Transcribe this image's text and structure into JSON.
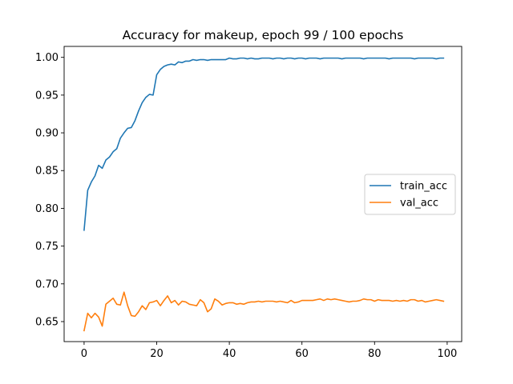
{
  "chart_data": {
    "type": "line",
    "title": "Accuracy for makeup, epoch 99 / 100 epochs",
    "xlabel": "",
    "ylabel": "",
    "xlim": [
      -5.5,
      104
    ],
    "ylim": [
      0.6235,
      1.0145
    ],
    "xticks": [
      0,
      20,
      40,
      60,
      80,
      100
    ],
    "yticks": [
      0.65,
      0.7,
      0.75,
      0.8,
      0.85,
      0.9,
      0.95,
      1.0
    ],
    "ytick_labels": [
      "0.65",
      "0.70",
      "0.75",
      "0.80",
      "0.85",
      "0.90",
      "0.95",
      "1.00"
    ],
    "grid": false,
    "legend_position": "center-right",
    "series": [
      {
        "name": "train_acc",
        "color": "#1f77b4",
        "values": [
          0.771,
          0.824,
          0.835,
          0.843,
          0.857,
          0.853,
          0.864,
          0.868,
          0.875,
          0.879,
          0.893,
          0.9,
          0.906,
          0.907,
          0.916,
          0.929,
          0.94,
          0.947,
          0.951,
          0.95,
          0.977,
          0.984,
          0.988,
          0.99,
          0.991,
          0.99,
          0.994,
          0.993,
          0.995,
          0.995,
          0.997,
          0.996,
          0.997,
          0.997,
          0.996,
          0.997,
          0.997,
          0.997,
          0.997,
          0.997,
          0.999,
          0.998,
          0.998,
          0.999,
          0.999,
          0.998,
          0.999,
          0.998,
          0.998,
          0.999,
          0.999,
          0.999,
          0.998,
          0.999,
          0.999,
          0.998,
          0.999,
          0.999,
          0.998,
          0.999,
          0.999,
          0.998,
          0.999,
          0.999,
          0.999,
          0.998,
          0.999,
          0.999,
          0.999,
          0.999,
          0.999,
          0.998,
          0.999,
          0.999,
          0.999,
          0.999,
          0.999,
          0.998,
          0.999,
          0.999,
          0.999,
          0.999,
          0.999,
          0.999,
          0.998,
          0.999,
          0.999,
          0.999,
          0.999,
          0.999,
          0.999,
          0.998,
          0.999,
          0.999,
          0.999,
          0.999,
          0.999,
          0.998,
          0.999,
          0.999
        ]
      },
      {
        "name": "val_acc",
        "color": "#ff7f0e",
        "values": [
          0.638,
          0.661,
          0.655,
          0.661,
          0.656,
          0.644,
          0.673,
          0.677,
          0.681,
          0.673,
          0.672,
          0.689,
          0.671,
          0.658,
          0.657,
          0.663,
          0.671,
          0.666,
          0.675,
          0.676,
          0.678,
          0.671,
          0.678,
          0.684,
          0.675,
          0.678,
          0.672,
          0.677,
          0.676,
          0.673,
          0.672,
          0.671,
          0.679,
          0.675,
          0.663,
          0.667,
          0.68,
          0.677,
          0.672,
          0.674,
          0.675,
          0.675,
          0.673,
          0.674,
          0.673,
          0.675,
          0.676,
          0.676,
          0.677,
          0.676,
          0.677,
          0.677,
          0.677,
          0.676,
          0.677,
          0.676,
          0.675,
          0.678,
          0.675,
          0.676,
          0.678,
          0.678,
          0.678,
          0.678,
          0.679,
          0.68,
          0.678,
          0.68,
          0.679,
          0.68,
          0.679,
          0.678,
          0.677,
          0.676,
          0.677,
          0.677,
          0.678,
          0.68,
          0.679,
          0.679,
          0.677,
          0.679,
          0.678,
          0.678,
          0.678,
          0.677,
          0.678,
          0.677,
          0.678,
          0.677,
          0.679,
          0.679,
          0.677,
          0.678,
          0.676,
          0.677,
          0.678,
          0.679,
          0.678,
          0.677
        ]
      }
    ]
  }
}
